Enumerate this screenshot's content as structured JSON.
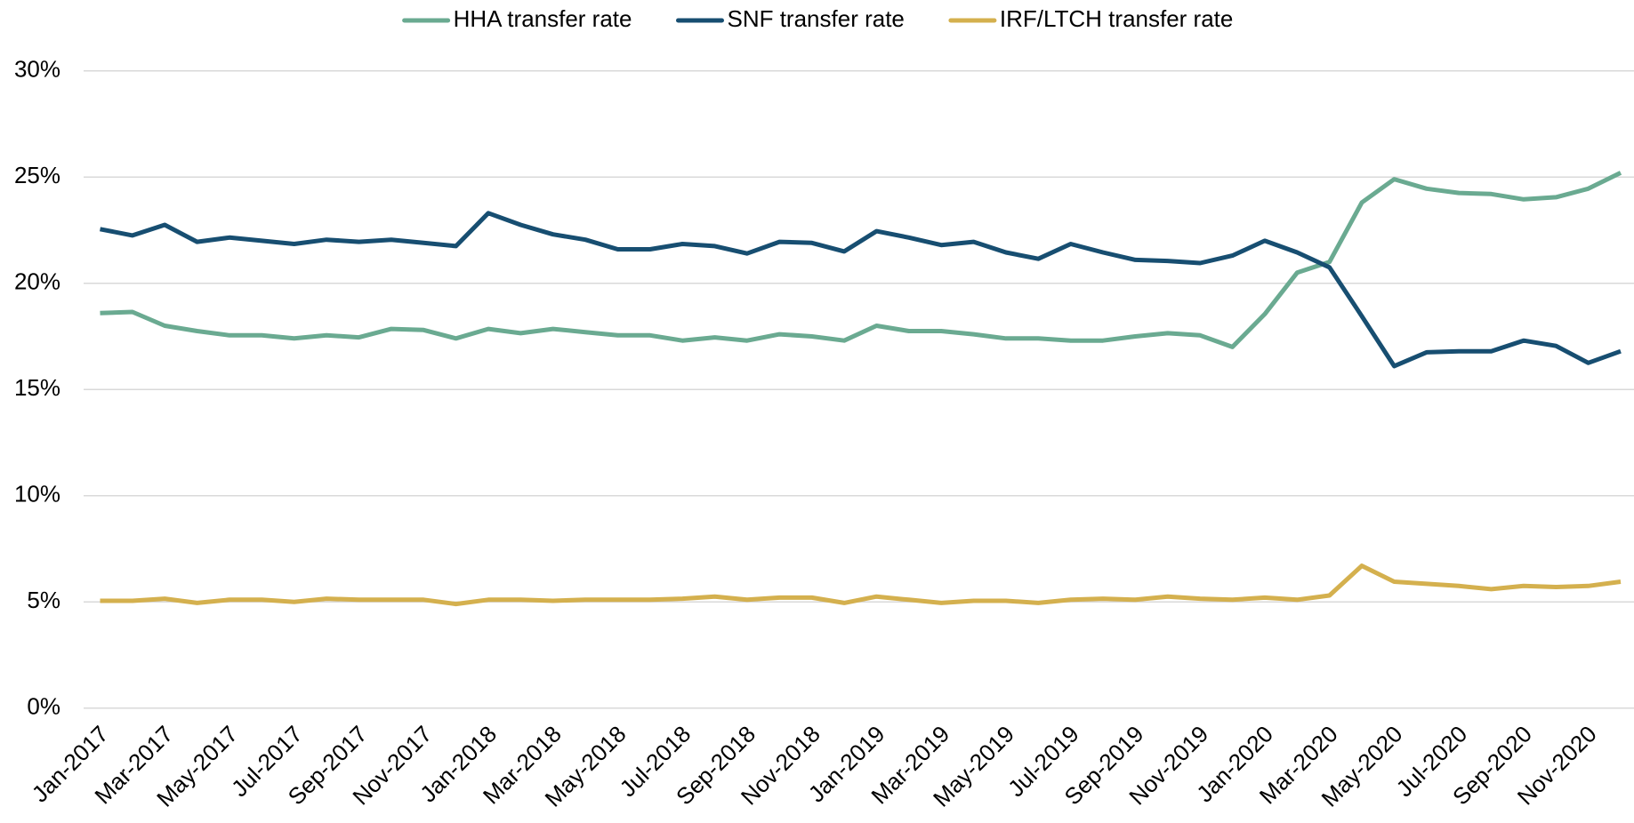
{
  "chart_data": {
    "type": "line",
    "categories": [
      "Jan-2017",
      null,
      "Mar-2017",
      null,
      "May-2017",
      null,
      "Jul-2017",
      null,
      "Sep-2017",
      null,
      "Nov-2017",
      null,
      "Jan-2018",
      null,
      "Mar-2018",
      null,
      "May-2018",
      null,
      "Jul-2018",
      null,
      "Sep-2018",
      null,
      "Nov-2018",
      null,
      "Jan-2019",
      null,
      "Mar-2019",
      null,
      "May-2019",
      null,
      "Jul-2019",
      null,
      "Sep-2019",
      null,
      "Nov-2019",
      null,
      "Jan-2020",
      null,
      "Mar-2020",
      null,
      "May-2020",
      null,
      "Jul-2020",
      null,
      "Sep-2020",
      null,
      "Nov-2020",
      null
    ],
    "series": [
      {
        "name": "HHA transfer rate",
        "color": "#6aaa91",
        "values": [
          18.6,
          18.65,
          18.0,
          17.75,
          17.55,
          17.55,
          17.4,
          17.55,
          17.45,
          17.85,
          17.8,
          17.4,
          17.85,
          17.65,
          17.85,
          17.7,
          17.55,
          17.55,
          17.3,
          17.45,
          17.3,
          17.6,
          17.5,
          17.3,
          18.0,
          17.75,
          17.75,
          17.6,
          17.4,
          17.4,
          17.3,
          17.3,
          17.5,
          17.65,
          17.55,
          17.0,
          18.55,
          20.5,
          21.0,
          23.8,
          24.9,
          24.45,
          24.25,
          24.2,
          23.95,
          24.05,
          24.45,
          25.2
        ]
      },
      {
        "name": "SNF transfer rate",
        "color": "#174e71",
        "values": [
          22.55,
          22.25,
          22.75,
          21.95,
          22.15,
          22.0,
          21.85,
          22.05,
          21.95,
          22.05,
          21.9,
          21.75,
          23.3,
          22.75,
          22.3,
          22.05,
          21.6,
          21.6,
          21.85,
          21.75,
          21.4,
          21.95,
          21.9,
          21.5,
          22.45,
          22.15,
          21.8,
          21.95,
          21.45,
          21.15,
          21.85,
          21.45,
          21.1,
          21.05,
          20.95,
          21.3,
          22.0,
          21.45,
          20.75,
          18.45,
          16.1,
          16.75,
          16.8,
          16.8,
          17.3,
          17.05,
          16.25,
          16.8
        ]
      },
      {
        "name": "IRF/LTCH transfer rate",
        "color": "#d4b04e",
        "values": [
          5.05,
          5.05,
          5.15,
          4.95,
          5.1,
          5.1,
          5.0,
          5.15,
          5.1,
          5.1,
          5.1,
          4.9,
          5.1,
          5.1,
          5.05,
          5.1,
          5.1,
          5.1,
          5.15,
          5.25,
          5.1,
          5.2,
          5.2,
          4.95,
          5.25,
          5.1,
          4.95,
          5.05,
          5.05,
          4.95,
          5.1,
          5.15,
          5.1,
          5.25,
          5.15,
          5.1,
          5.2,
          5.1,
          5.3,
          6.7,
          5.95,
          5.85,
          5.75,
          5.6,
          5.75,
          5.7,
          5.75,
          5.95
        ]
      }
    ],
    "ylim": [
      0,
      30
    ],
    "yticks": [
      {
        "value": 0,
        "label": "0%"
      },
      {
        "value": 5,
        "label": "5%"
      },
      {
        "value": 10,
        "label": "10%"
      },
      {
        "value": 15,
        "label": "15%"
      },
      {
        "value": 20,
        "label": "20%"
      },
      {
        "value": 25,
        "label": "25%"
      },
      {
        "value": 30,
        "label": "30%"
      }
    ],
    "grid": true,
    "legend": "top"
  }
}
